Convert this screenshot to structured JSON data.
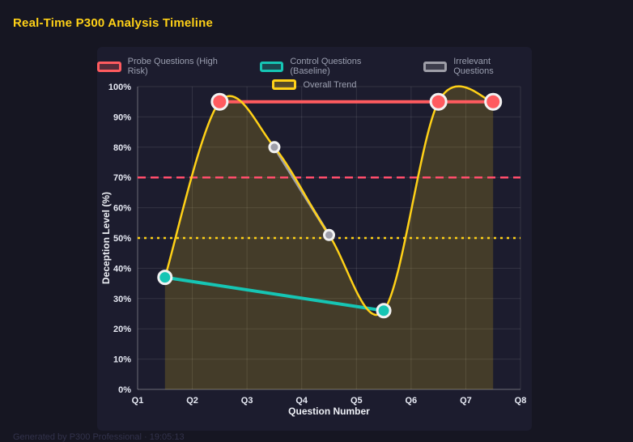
{
  "page": {
    "title": "Real-Time P300 Analysis Timeline",
    "caption": "Generated by P300 Professional · 19:05:13"
  },
  "colors": {
    "background": "#161622",
    "panel": "#1c1c2e",
    "title": "#ffd117",
    "grid": "rgba(255,255,255,0.10)",
    "axis": "rgba(255,255,255,0.28)",
    "tick_text": "#e7eaf4",
    "legend_text": "#9b9fb0",
    "point_ring": "#f2f2f2"
  },
  "chart_data": {
    "type": "line",
    "title": "Real-Time P300 Analysis Timeline",
    "xlabel": "Question Number",
    "ylabel": "Deception Level (%)",
    "x_ticks": [
      "Q1",
      "Q2",
      "Q3",
      "Q4",
      "Q5",
      "Q6",
      "Q7",
      "Q8"
    ],
    "x_range": [
      1,
      8
    ],
    "ylim": [
      0,
      100
    ],
    "y_tick_step": 10,
    "y_tick_suffix": "%",
    "grid": true,
    "legend_position": "top",
    "series": [
      {
        "id": "probe",
        "name": "Probe Questions (High Risk)",
        "color": "#ff5b5f",
        "points": [
          [
            2.5,
            95
          ],
          [
            6.5,
            95
          ],
          [
            7.5,
            95
          ]
        ],
        "line_width": 4,
        "point_radius": 9.5,
        "smooth": false,
        "fill": false
      },
      {
        "id": "control",
        "name": "Control Questions (Baseline)",
        "color": "#16c5b4",
        "points": [
          [
            1.5,
            37
          ],
          [
            5.5,
            26
          ]
        ],
        "line_width": 4,
        "point_radius": 8,
        "smooth": false,
        "fill": false
      },
      {
        "id": "irrelevant",
        "name": "Irrelevant Questions",
        "color": "#9e9ea8",
        "points": [
          [
            3.5,
            80
          ],
          [
            4.5,
            51
          ]
        ],
        "line_width": 3.5,
        "point_radius": 6,
        "smooth": false,
        "fill": false
      },
      {
        "id": "trend",
        "name": "Overall Trend",
        "color": "#ffd117",
        "points": [
          [
            1.5,
            37
          ],
          [
            2.5,
            95
          ],
          [
            3.5,
            80
          ],
          [
            4.5,
            51
          ],
          [
            5.5,
            26
          ],
          [
            6.5,
            95
          ],
          [
            7.5,
            95
          ]
        ],
        "line_width": 2.5,
        "point_radius": 0,
        "smooth": true,
        "fill": true,
        "fill_opacity": 0.18
      }
    ],
    "thresholds": [
      {
        "y": 70,
        "color": "#ff4d6b",
        "style": "dashed"
      },
      {
        "y": 50,
        "color": "#ffd117",
        "style": "dotted"
      }
    ]
  }
}
